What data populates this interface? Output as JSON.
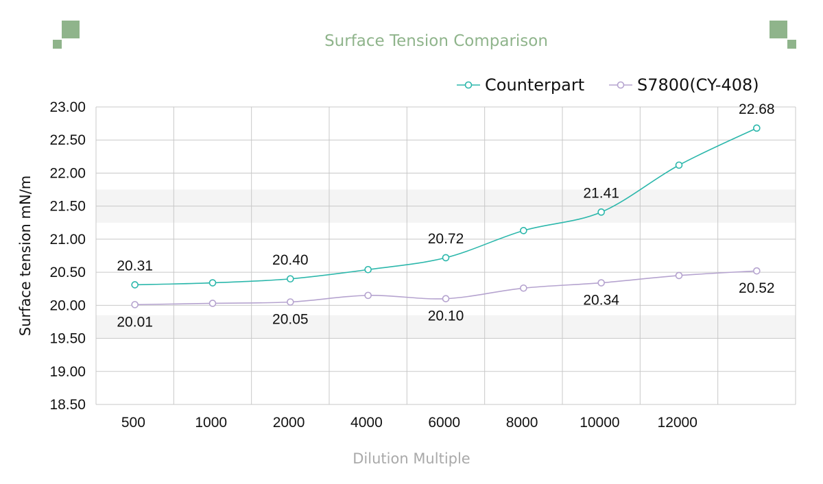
{
  "colors": {
    "accent": "#8fb48b",
    "counterpart": "#2bb7ab",
    "s7800": "#b5a3cf",
    "axis_title": "#a9a9a9",
    "grid": "#c8c8c8",
    "band": "#f4f4f4"
  },
  "chart_data": {
    "type": "line",
    "title": "Surface Tension Comparison",
    "xlabel": "Dilution Multiple",
    "ylabel": "Surface tension mN/m",
    "ylim": [
      18.5,
      23.0
    ],
    "y_ticks": [
      "23.00",
      "22.50",
      "22.00",
      "21.50",
      "21.00",
      "20.50",
      "20.00",
      "19.50",
      "19.00",
      "18.50"
    ],
    "categories": [
      "500",
      "1000",
      "2000",
      "4000",
      "6000",
      "8000",
      "10000",
      "12000",
      ""
    ],
    "grid": true,
    "legend_position": "top-right",
    "series": [
      {
        "name": "Counterpart",
        "values": [
          20.31,
          20.34,
          20.4,
          20.54,
          20.72,
          21.13,
          21.41,
          22.12,
          22.68
        ],
        "labels": [
          "20.31",
          "",
          "20.40",
          "",
          "20.72",
          "",
          "21.41",
          "",
          "22.68"
        ]
      },
      {
        "name": "S7800(CY-408)",
        "values": [
          20.01,
          20.03,
          20.05,
          20.15,
          20.1,
          20.26,
          20.34,
          20.45,
          20.52
        ],
        "labels": [
          "20.01",
          "",
          "20.05",
          "",
          "20.10",
          "",
          "20.34",
          "",
          "20.52"
        ]
      }
    ]
  }
}
